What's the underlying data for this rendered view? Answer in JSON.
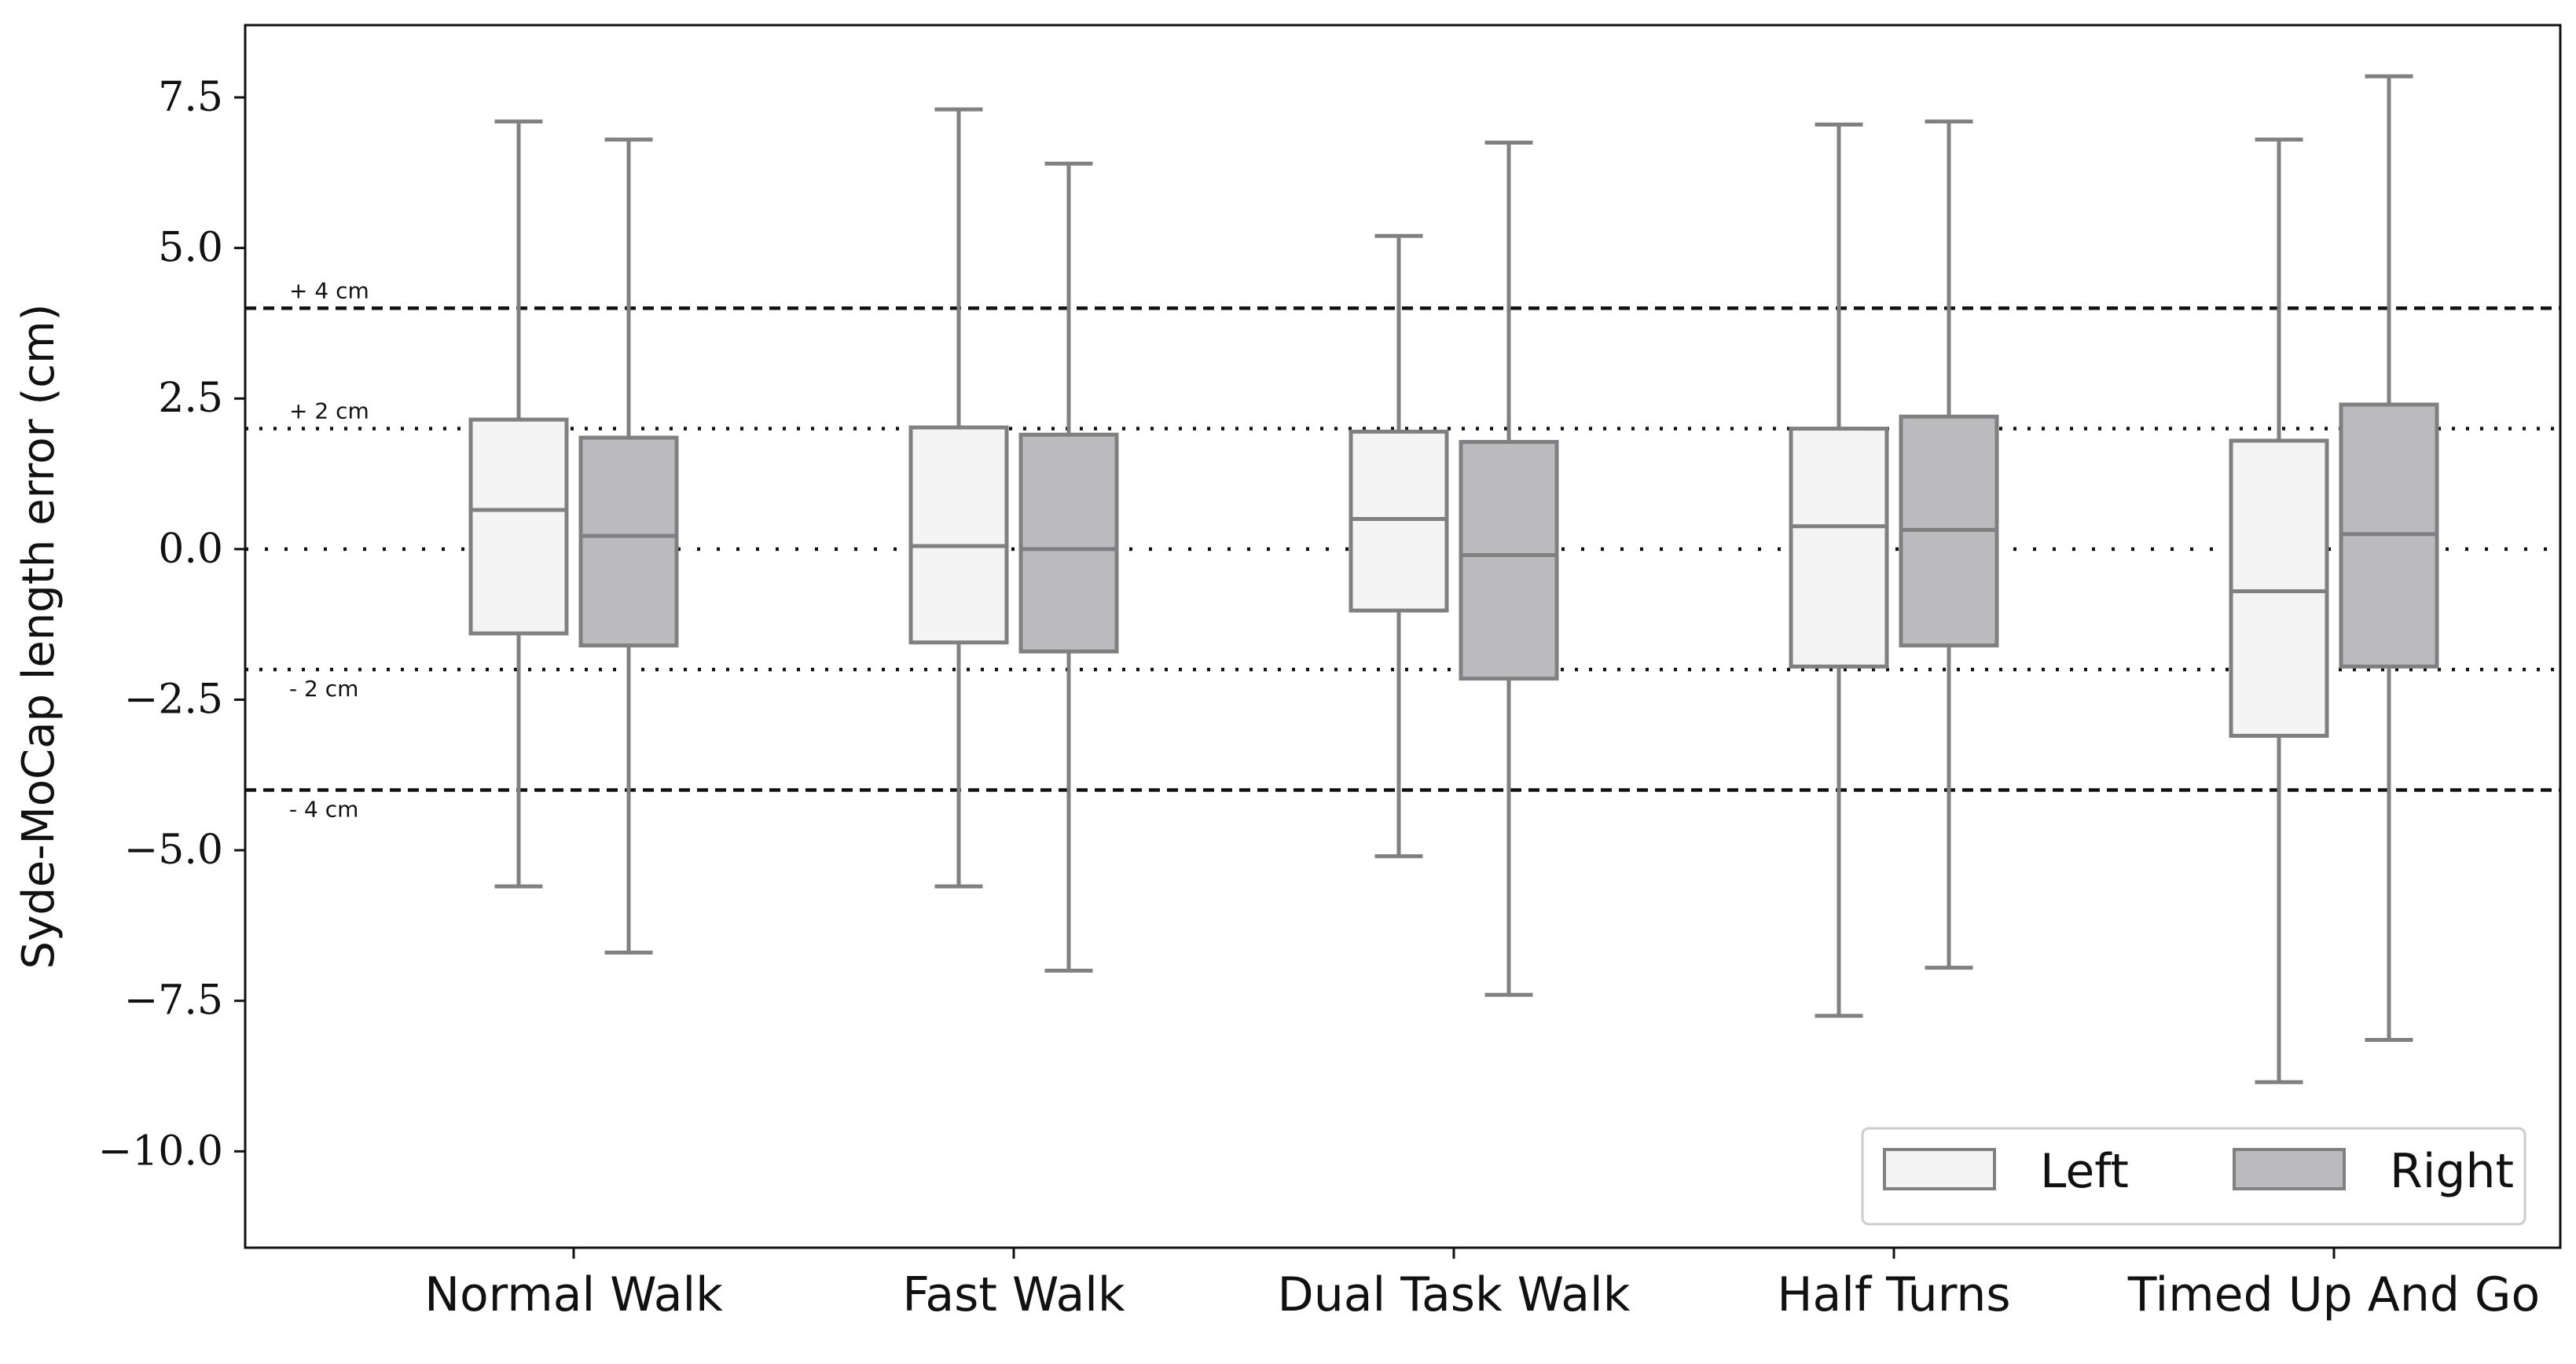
{
  "chart_data": {
    "type": "box",
    "ylabel": "Syde-MoCap length error (cm)",
    "xlabel": "",
    "ylim": [
      -11.6,
      8.7
    ],
    "yticks": [
      7.5,
      5.0,
      2.5,
      0.0,
      -2.5,
      -5.0,
      -7.5,
      -10.0
    ],
    "ytick_labels": [
      "7.5",
      "5.0",
      "2.5",
      "0.0",
      "−2.5",
      "−5.0",
      "−7.5",
      "−10.0"
    ],
    "categories": [
      "Normal Walk",
      "Fast Walk",
      "Dual Task Walk",
      "Half Turns",
      "Timed Up And Go"
    ],
    "series": [
      {
        "name": "Left",
        "color": "#f4f4f4",
        "boxes": [
          {
            "whisker_low": -5.6,
            "q1": -1.4,
            "median": 0.65,
            "q3": 2.15,
            "whisker_high": 7.1
          },
          {
            "whisker_low": -5.6,
            "q1": -1.55,
            "median": 0.05,
            "q3": 2.02,
            "whisker_high": 7.3
          },
          {
            "whisker_low": -5.1,
            "q1": -1.02,
            "median": 0.5,
            "q3": 1.95,
            "whisker_high": 5.2
          },
          {
            "whisker_low": -7.75,
            "q1": -1.95,
            "median": 0.38,
            "q3": 2.0,
            "whisker_high": 7.05
          },
          {
            "whisker_low": -8.85,
            "q1": -3.1,
            "median": -0.7,
            "q3": 1.8,
            "whisker_high": 6.8
          }
        ]
      },
      {
        "name": "Right",
        "color": "#bbbbbd",
        "boxes": [
          {
            "whisker_low": -6.7,
            "q1": -1.6,
            "median": 0.22,
            "q3": 1.85,
            "whisker_high": 6.8
          },
          {
            "whisker_low": -7.0,
            "q1": -1.7,
            "median": 0.0,
            "q3": 1.9,
            "whisker_high": 6.4
          },
          {
            "whisker_low": -7.4,
            "q1": -2.15,
            "median": -0.1,
            "q3": 1.78,
            "whisker_high": 6.75
          },
          {
            "whisker_low": -6.95,
            "q1": -1.6,
            "median": 0.32,
            "q3": 2.2,
            "whisker_high": 7.1
          },
          {
            "whisker_low": -8.15,
            "q1": -1.95,
            "median": 0.25,
            "q3": 2.4,
            "whisker_high": 7.85
          }
        ]
      }
    ],
    "reference_lines": [
      {
        "y": 4,
        "style": "dashed",
        "label": "+ 4 cm"
      },
      {
        "y": 2,
        "style": "dotted",
        "label": "+ 2 cm"
      },
      {
        "y": 0,
        "style": "dotted-sparse",
        "label": ""
      },
      {
        "y": -2,
        "style": "dotted",
        "label": "- 2 cm"
      },
      {
        "y": -4,
        "style": "dashed",
        "label": "- 4 cm"
      }
    ],
    "legend": {
      "placement": "bottom-right",
      "entries": [
        "Left",
        "Right"
      ]
    },
    "grid": false
  }
}
